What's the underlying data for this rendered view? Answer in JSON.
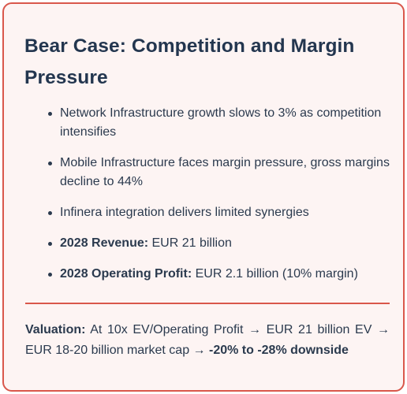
{
  "card": {
    "title": "Bear Case: Competition and Margin Pressure",
    "bullets": [
      {
        "label": "",
        "text": "Network Infrastructure growth slows to 3% as competition intensifies"
      },
      {
        "label": "",
        "text": "Mobile Infrastructure faces margin pressure, gross margins decline to 44%"
      },
      {
        "label": "",
        "text": "Infinera integration delivers limited synergies"
      },
      {
        "label": "2028 Revenue:",
        "text": " EUR 21 billion"
      },
      {
        "label": "2028 Operating Profit:",
        "text": " EUR 2.1 billion (10% margin)"
      }
    ],
    "valuation": {
      "label": "Valuation:",
      "text": " At 10x EV/Operating Profit → EUR 21 billion EV → EUR 18-20 billion market cap → ",
      "emphasis": "-20% to -28% downside"
    }
  },
  "colors": {
    "border": "#d9574b",
    "background": "#fdf4f3",
    "title": "#23364f",
    "text": "#2b3a4e"
  }
}
